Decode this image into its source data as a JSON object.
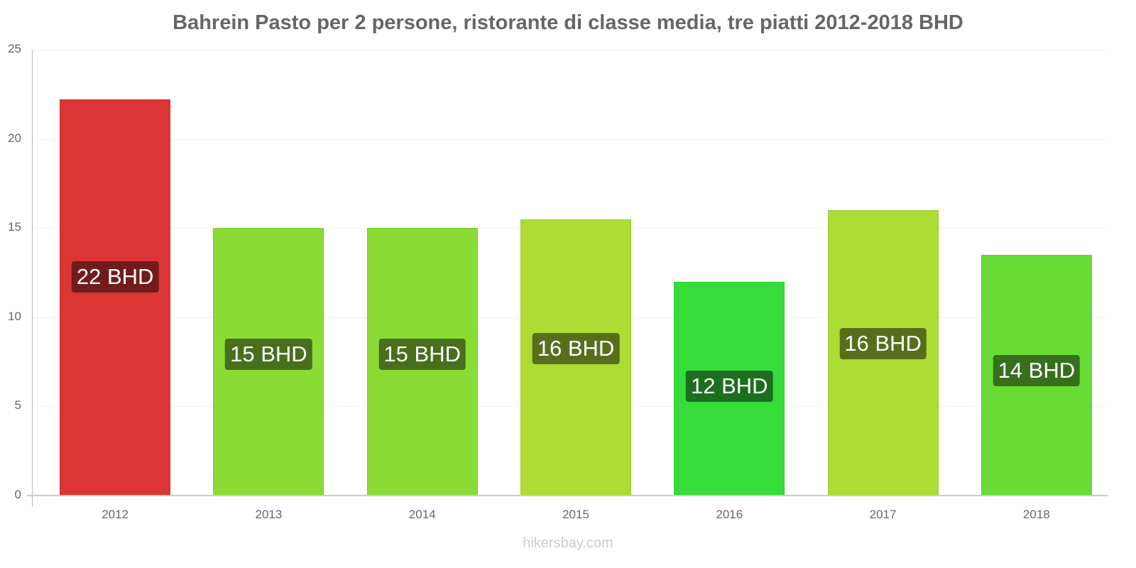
{
  "chart_data": {
    "type": "bar",
    "title": "Bahrein Pasto per 2 persone, ristorante di classe media, tre piatti 2012-2018 BHD",
    "xlabel": "",
    "ylabel": "",
    "ylim": [
      0,
      25
    ],
    "yticks": [
      0,
      5,
      10,
      15,
      20,
      25
    ],
    "grid": true,
    "legend": "none",
    "categories": [
      "2012",
      "2013",
      "2014",
      "2015",
      "2016",
      "2017",
      "2018"
    ],
    "values": [
      22.2,
      15,
      15,
      15.5,
      12,
      16,
      13.5
    ],
    "data_labels": [
      "22 BHD",
      "15 BHD",
      "15 BHD",
      "16 BHD",
      "12 BHD",
      "16 BHD",
      "14 BHD"
    ],
    "bar_colors": [
      "#dc3535",
      "#8adc35",
      "#8adc35",
      "#addc35",
      "#35dc3a",
      "#addc35",
      "#68dc35"
    ],
    "label_colors": [
      "#701c1c",
      "#476f1c",
      "#476f1c",
      "#576f1c",
      "#1c6f1e",
      "#576f1c",
      "#386f1c"
    ]
  },
  "watermark": "hikersbay.com"
}
